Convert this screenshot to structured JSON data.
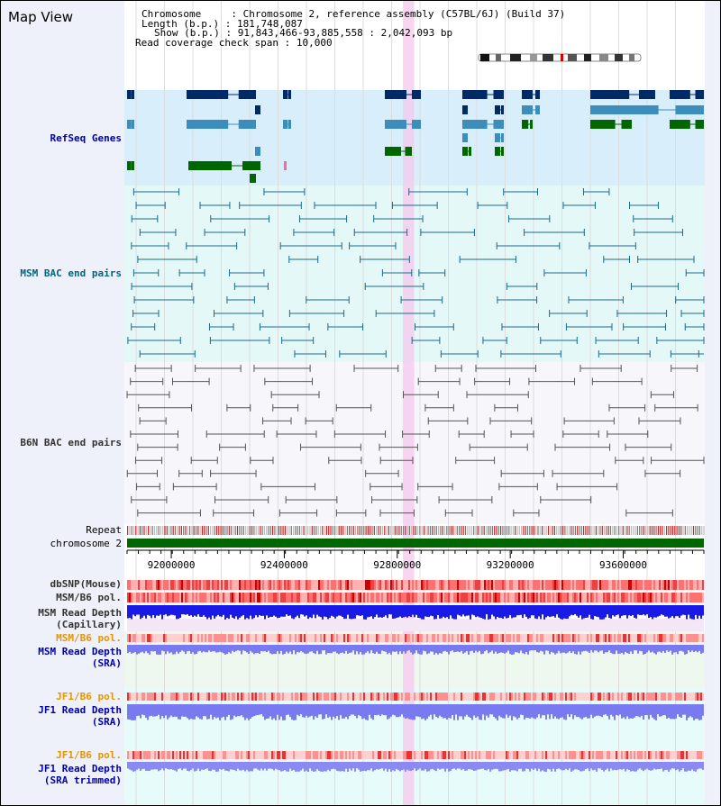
{
  "map_title": "Map View",
  "header": {
    "chromosome_label": "Chromosome",
    "chromosome_value": "Chromosome 2, reference assembly (C57BL/6J) (Build 37)",
    "length_label": "Length (b.p.)",
    "length_value": "181,748,087",
    "show_label": "Show (b.p.)",
    "show_value": "91,843,466-93,885,558 : 2,042,093 bp",
    "coverage_label": "Read coverage check span",
    "coverage_value": "10,000"
  },
  "tracks": {
    "refseq": {
      "label": "RefSeq Genes",
      "color": "#0000aa"
    },
    "msm_bac": {
      "label": "MSM BAC end pairs",
      "color": "#006680"
    },
    "b6n_bac": {
      "label": "B6N BAC end pairs",
      "color": "#333333"
    },
    "repeat": {
      "label": "Repeat"
    },
    "chromosome": {
      "label": "chromosome 2"
    },
    "dbsnp": {
      "label": "dbSNP(Mouse)"
    },
    "msm_b6_pol_1": {
      "label": "MSM/B6 pol."
    },
    "msm_read_depth_cap": {
      "label": "MSM Read Depth",
      "sub": "(Capillary)"
    },
    "msm_b6_pol_2": {
      "label": "MSM/B6 pol.",
      "color": "#e69500"
    },
    "msm_read_depth_sra": {
      "label": "MSM Read Depth",
      "sub": "(SRA)",
      "color": "#0000aa"
    },
    "jf1_b6_pol_1": {
      "label": "JF1/B6 pol.",
      "color": "#e69500"
    },
    "jf1_read_depth_sra": {
      "label": "JF1 Read Depth",
      "sub": "(SRA)",
      "color": "#0000aa"
    },
    "jf1_b6_pol_2": {
      "label": "JF1/B6 pol.",
      "color": "#e69500"
    },
    "jf1_read_depth_trim": {
      "label": "JF1 Read Depth",
      "sub": "(SRA trimmed)",
      "color": "#0000aa"
    }
  },
  "axis": {
    "start_bp": 91843466,
    "end_bp": 93885558,
    "ticks": [
      {
        "bp": 92000000,
        "label": "92000000"
      },
      {
        "bp": 92400000,
        "label": "92400000"
      },
      {
        "bp": 92800000,
        "label": "92800000"
      },
      {
        "bp": 93200000,
        "label": "93200000"
      },
      {
        "bp": 93600000,
        "label": "93600000"
      }
    ],
    "highlight_bp": [
      92820000,
      92860000
    ]
  }
}
